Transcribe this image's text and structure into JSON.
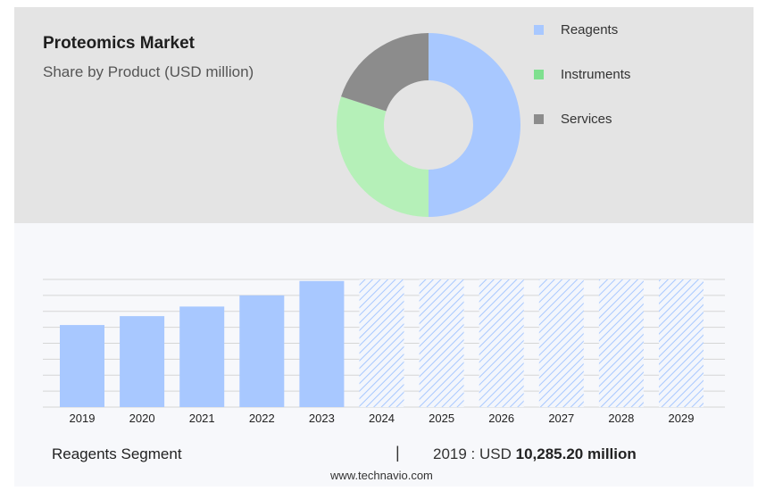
{
  "header": {
    "title": "Proteomics Market",
    "subtitle": "Share by Product (USD million)"
  },
  "legend": [
    {
      "label": "Reagents",
      "color": "#a8c8ff"
    },
    {
      "label": "Instruments",
      "color": "#7fe08f"
    },
    {
      "label": "Services",
      "color": "#8c8c8c"
    }
  ],
  "footer": {
    "segment_label": "Reagents Segment",
    "separator": "|",
    "stat_prefix": "2019 : USD",
    "stat_value": "10,285.20 million",
    "source": "www.technavio.com"
  },
  "chart_data": [
    {
      "type": "pie",
      "subtype": "donut",
      "title": "Proteomics Market",
      "subtitle": "Share by Product (USD million)",
      "categories": [
        "Reagents",
        "Instruments",
        "Services"
      ],
      "values": [
        50,
        30,
        20
      ],
      "colors": [
        "#a8c8ff",
        "#b5f0b8",
        "#8c8c8c"
      ],
      "legend_position": "right"
    },
    {
      "type": "bar",
      "categories": [
        "2019",
        "2020",
        "2021",
        "2022",
        "2023",
        "2024",
        "2025",
        "2026",
        "2027",
        "2028",
        "2029"
      ],
      "values": [
        10285.2,
        11400,
        12600,
        14000,
        15800,
        null,
        null,
        null,
        null,
        null,
        null
      ],
      "forecast_categories": [
        "2024",
        "2025",
        "2026",
        "2027",
        "2028",
        "2029"
      ],
      "forecast_style": "hatched",
      "bar_color": "#a8c8ff",
      "ylim": [
        0,
        16000
      ],
      "grid": true,
      "xlabel": "",
      "ylabel": ""
    }
  ]
}
